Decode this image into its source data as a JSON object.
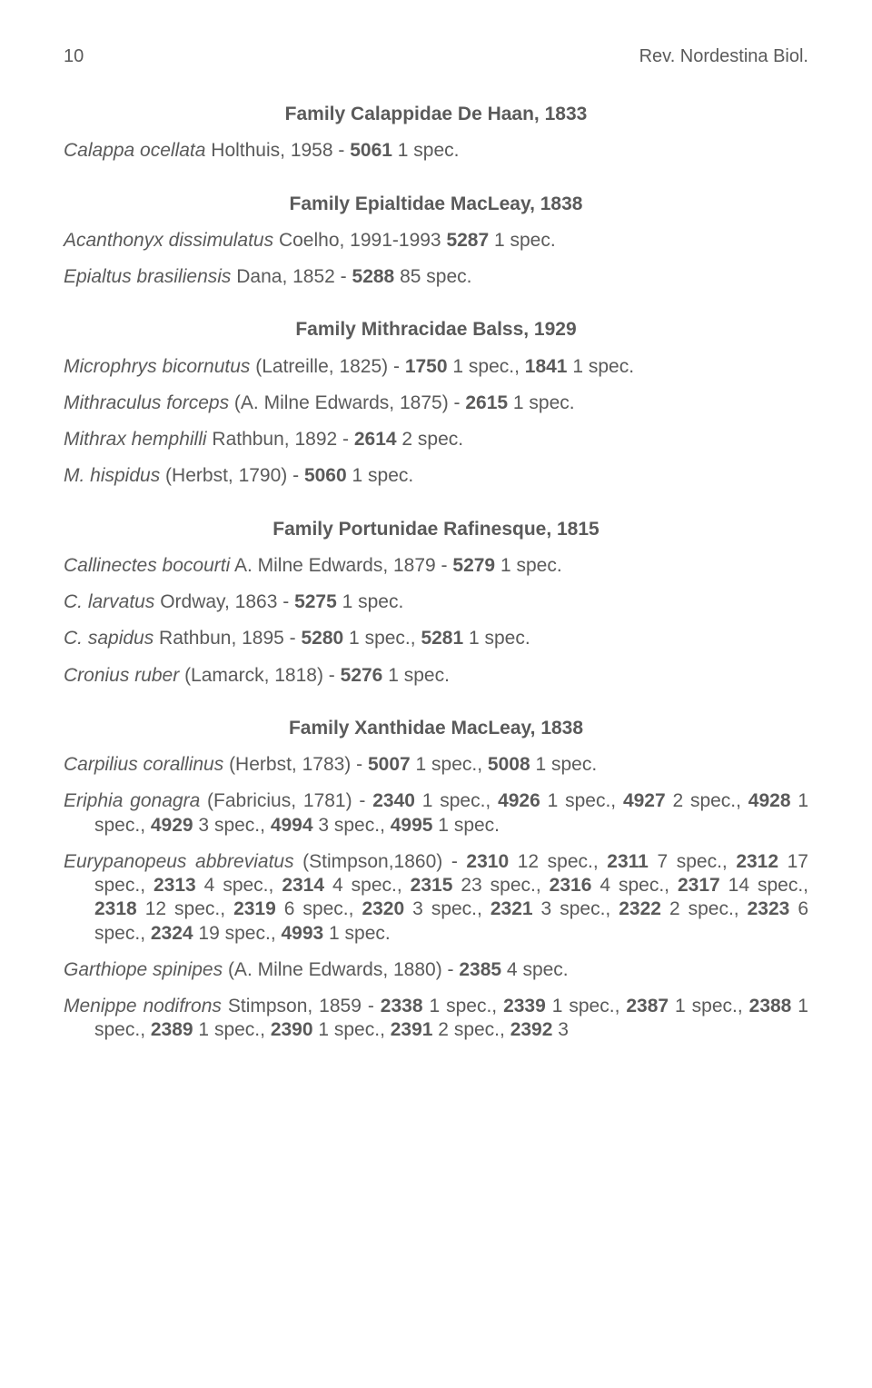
{
  "page": {
    "number": "10",
    "journal": "Rev. Nordestina Biol."
  },
  "colors": {
    "text": "#5a5a5a",
    "background": "#ffffff"
  },
  "typography": {
    "body_fontsize_pt": 16,
    "heading_fontsize_pt": 16,
    "font_family": "Arial"
  },
  "sections": [
    {
      "heading": "Family Calappidae De Haan, 1833",
      "entries": [
        [
          {
            "t": "Calappa ocellata",
            "i": true
          },
          {
            "t": " Holthuis, 1958 - "
          },
          {
            "t": "5061",
            "b": true
          },
          {
            "t": " 1 spec."
          }
        ]
      ]
    },
    {
      "heading": "Family Epialtidae MacLeay, 1838",
      "entries": [
        [
          {
            "t": "Acanthonyx dissimulatus",
            "i": true
          },
          {
            "t": " Coelho, 1991-1993 "
          },
          {
            "t": "5287",
            "b": true
          },
          {
            "t": " 1 spec."
          }
        ],
        [
          {
            "t": "Epialtus brasiliensis",
            "i": true
          },
          {
            "t": " Dana, 1852 - "
          },
          {
            "t": "5288",
            "b": true
          },
          {
            "t": " 85 spec."
          }
        ]
      ]
    },
    {
      "heading": "Family Mithracidae Balss, 1929",
      "entries": [
        [
          {
            "t": "Microphrys bicornutus",
            "i": true
          },
          {
            "t": " (Latreille, 1825) - "
          },
          {
            "t": "1750",
            "b": true
          },
          {
            "t": " 1 spec., "
          },
          {
            "t": "1841",
            "b": true
          },
          {
            "t": " 1 spec."
          }
        ],
        [
          {
            "t": "Mithraculus forceps",
            "i": true
          },
          {
            "t": " (A. Milne Edwards, 1875) - "
          },
          {
            "t": "2615",
            "b": true
          },
          {
            "t": " 1 spec."
          }
        ],
        [
          {
            "t": "Mithrax hemphilli",
            "i": true
          },
          {
            "t": " Rathbun, 1892 - "
          },
          {
            "t": "2614",
            "b": true
          },
          {
            "t": " 2 spec."
          }
        ],
        [
          {
            "t": "M. hispidus",
            "i": true
          },
          {
            "t": " (Herbst, 1790) - "
          },
          {
            "t": "5060",
            "b": true
          },
          {
            "t": " 1 spec."
          }
        ]
      ]
    },
    {
      "heading": "Family Portunidae Rafinesque, 1815",
      "entries": [
        [
          {
            "t": "Callinectes bocourti",
            "i": true
          },
          {
            "t": " A. Milne Edwards, 1879 - "
          },
          {
            "t": "5279",
            "b": true
          },
          {
            "t": " 1 spec."
          }
        ],
        [
          {
            "t": "C. larvatus",
            "i": true
          },
          {
            "t": " Ordway, 1863 - "
          },
          {
            "t": "5275",
            "b": true
          },
          {
            "t": " 1 spec."
          }
        ],
        [
          {
            "t": "C. sapidus",
            "i": true
          },
          {
            "t": " Rathbun, 1895 - "
          },
          {
            "t": "5280",
            "b": true
          },
          {
            "t": " 1 spec., "
          },
          {
            "t": "5281",
            "b": true
          },
          {
            "t": " 1 spec."
          }
        ],
        [
          {
            "t": "Cronius ruber",
            "i": true
          },
          {
            "t": " (Lamarck, 1818) - "
          },
          {
            "t": "5276",
            "b": true
          },
          {
            "t": " 1 spec."
          }
        ]
      ]
    },
    {
      "heading": "Family Xanthidae MacLeay, 1838",
      "entries": [
        [
          {
            "t": "Carpilius corallinus",
            "i": true
          },
          {
            "t": " (Herbst, 1783) - "
          },
          {
            "t": "5007",
            "b": true
          },
          {
            "t": " 1 spec., "
          },
          {
            "t": "5008",
            "b": true
          },
          {
            "t": " 1 spec."
          }
        ],
        [
          {
            "t": "Eriphia gonagra",
            "i": true
          },
          {
            "t": " (Fabricius, 1781) - "
          },
          {
            "t": "2340",
            "b": true
          },
          {
            "t": " 1 spec., "
          },
          {
            "t": "4926",
            "b": true
          },
          {
            "t": " 1 spec., "
          },
          {
            "t": "4927",
            "b": true
          },
          {
            "t": " 2 spec., "
          },
          {
            "t": "4928",
            "b": true
          },
          {
            "t": " 1 spec., "
          },
          {
            "t": "4929",
            "b": true
          },
          {
            "t": " 3 spec., "
          },
          {
            "t": "4994",
            "b": true
          },
          {
            "t": " 3 spec., "
          },
          {
            "t": "4995",
            "b": true
          },
          {
            "t": " 1 spec."
          }
        ],
        [
          {
            "t": "Eurypanopeus abbreviatus",
            "i": true
          },
          {
            "t": " (Stimpson,1860) - "
          },
          {
            "t": "2310",
            "b": true
          },
          {
            "t": " 12 spec., "
          },
          {
            "t": "2311",
            "b": true
          },
          {
            "t": " 7 spec., "
          },
          {
            "t": "2312",
            "b": true
          },
          {
            "t": " 17 spec., "
          },
          {
            "t": "2313",
            "b": true
          },
          {
            "t": " 4 spec., "
          },
          {
            "t": "2314",
            "b": true
          },
          {
            "t": " 4 spec., "
          },
          {
            "t": "2315",
            "b": true
          },
          {
            "t": " 23 spec., "
          },
          {
            "t": "2316",
            "b": true
          },
          {
            "t": " 4 spec., "
          },
          {
            "t": "2317",
            "b": true
          },
          {
            "t": " 14 spec., "
          },
          {
            "t": "2318",
            "b": true
          },
          {
            "t": " 12 spec., "
          },
          {
            "t": "2319",
            "b": true
          },
          {
            "t": " 6 spec., "
          },
          {
            "t": "2320",
            "b": true
          },
          {
            "t": " 3 spec., "
          },
          {
            "t": "2321",
            "b": true
          },
          {
            "t": " 3 spec., "
          },
          {
            "t": "2322",
            "b": true
          },
          {
            "t": " 2 spec., "
          },
          {
            "t": "2323",
            "b": true
          },
          {
            "t": " 6 spec., "
          },
          {
            "t": "2324",
            "b": true
          },
          {
            "t": " 19 spec., "
          },
          {
            "t": "4993",
            "b": true
          },
          {
            "t": " 1 spec."
          }
        ],
        [
          {
            "t": "Garthiope spinipes",
            "i": true
          },
          {
            "t": " (A. Milne Edwards, 1880) - "
          },
          {
            "t": "2385",
            "b": true
          },
          {
            "t": " 4 spec."
          }
        ],
        [
          {
            "t": "Menippe nodifrons",
            "i": true
          },
          {
            "t": " Stimpson, 1859 - "
          },
          {
            "t": "2338",
            "b": true
          },
          {
            "t": " 1 spec., "
          },
          {
            "t": "2339",
            "b": true
          },
          {
            "t": " 1 spec., "
          },
          {
            "t": "2387",
            "b": true
          },
          {
            "t": " 1 spec., "
          },
          {
            "t": "2388",
            "b": true
          },
          {
            "t": " 1 spec., "
          },
          {
            "t": "2389",
            "b": true
          },
          {
            "t": " 1 spec., "
          },
          {
            "t": "2390",
            "b": true
          },
          {
            "t": " 1 spec., "
          },
          {
            "t": "2391",
            "b": true
          },
          {
            "t": " 2 spec., "
          },
          {
            "t": "2392",
            "b": true
          },
          {
            "t": " 3"
          }
        ]
      ]
    }
  ]
}
